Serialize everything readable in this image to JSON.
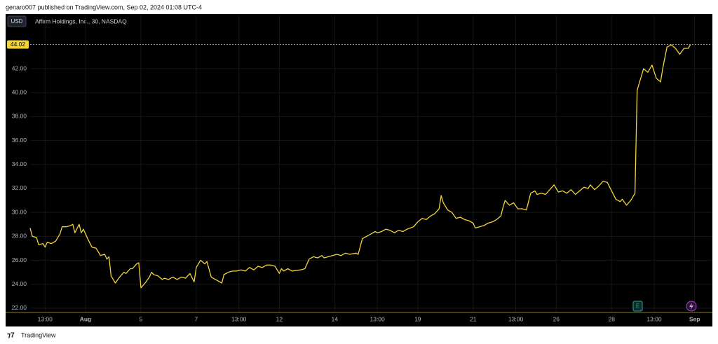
{
  "header": {
    "publisher": "genaro007 published on TradingView.com, Sep 02, 2024 01:08 UTC-4"
  },
  "footer": {
    "brand": "TradingView"
  },
  "chart_data": {
    "type": "line",
    "title": "Affirm Holdings, Inc., 30, NASDAQ",
    "currency": "USD",
    "color": "#f2d33b",
    "grid": true,
    "last_value": 44.02,
    "events": [
      "E"
    ],
    "xlim": [
      0,
      320
    ],
    "ylim": [
      21.7,
      46.45
    ],
    "xticks": [
      {
        "value": 7,
        "label": "13:00"
      },
      {
        "value": 26,
        "label": "Aug"
      },
      {
        "value": 52,
        "label": "5"
      },
      {
        "value": 78,
        "label": "7"
      },
      {
        "value": 98,
        "label": "13:00"
      },
      {
        "value": 117,
        "label": "12"
      },
      {
        "value": 143,
        "label": "14"
      },
      {
        "value": 163,
        "label": "13:00"
      },
      {
        "value": 182,
        "label": "19"
      },
      {
        "value": 208,
        "label": "21"
      },
      {
        "value": 228,
        "label": "13:00"
      },
      {
        "value": 247,
        "label": "26"
      },
      {
        "value": 273,
        "label": "28"
      },
      {
        "value": 293,
        "label": "13:00"
      },
      {
        "value": 312,
        "label": "Sep"
      }
    ],
    "yticks": [
      {
        "value": 22,
        "label": "22.00"
      },
      {
        "value": 24,
        "label": "24.00"
      },
      {
        "value": 26,
        "label": "26.00"
      },
      {
        "value": 28,
        "label": "28.00"
      },
      {
        "value": 30,
        "label": "30.00"
      },
      {
        "value": 32,
        "label": "32.00"
      },
      {
        "value": 34,
        "label": "34.00"
      },
      {
        "value": 36,
        "label": "36.00"
      },
      {
        "value": 38,
        "label": "38.00"
      },
      {
        "value": 40,
        "label": "40.00"
      },
      {
        "value": 42,
        "label": "42.00"
      }
    ],
    "x": [
      0,
      1,
      3,
      4,
      6,
      7,
      8,
      10,
      12,
      14,
      15,
      17,
      19,
      20,
      21,
      23,
      24,
      25,
      27,
      29,
      31,
      33,
      35,
      36,
      37,
      38,
      40,
      42,
      44,
      45,
      47,
      48,
      50,
      51,
      52,
      54,
      56,
      57,
      58,
      60,
      62,
      63,
      65,
      67,
      69,
      71,
      73,
      75,
      77,
      78,
      80,
      82,
      83,
      85,
      87,
      90,
      91,
      93,
      95,
      97,
      99,
      101,
      103,
      105,
      107,
      109,
      111,
      113,
      115,
      117,
      118,
      119,
      121,
      123,
      127,
      129,
      131,
      133,
      135,
      137,
      138,
      140,
      142,
      144,
      146,
      148,
      150,
      153,
      154,
      156,
      158,
      160,
      162,
      163,
      165,
      167,
      169,
      171,
      173,
      175,
      177,
      180,
      182,
      184,
      186,
      188,
      190,
      192,
      193,
      194,
      196,
      198,
      200,
      202,
      204,
      206,
      208,
      209,
      211,
      213,
      215,
      217,
      219,
      221,
      222,
      223,
      225,
      227,
      229,
      231,
      233,
      234,
      235,
      237,
      238,
      240,
      242,
      244,
      246,
      248,
      250,
      252,
      254,
      256,
      258,
      260,
      262,
      263,
      265,
      267,
      269,
      271,
      273,
      275,
      277,
      278,
      280,
      282,
      284,
      285,
      287,
      288,
      290,
      292,
      294,
      296,
      297,
      299,
      301,
      303,
      305,
      307,
      309,
      310
    ],
    "values": [
      28.7,
      28.0,
      27.9,
      27.3,
      27.4,
      27.1,
      27.5,
      27.4,
      27.6,
      28.2,
      28.8,
      28.8,
      28.9,
      29.0,
      28.3,
      29.0,
      28.3,
      28.6,
      27.8,
      27.1,
      27.0,
      26.4,
      26.5,
      26.1,
      26.3,
      24.7,
      24.1,
      24.6,
      25.0,
      24.9,
      25.3,
      25.3,
      25.7,
      25.8,
      23.7,
      24.1,
      24.6,
      25.0,
      24.8,
      24.7,
      24.4,
      24.5,
      24.4,
      24.6,
      24.4,
      24.6,
      24.5,
      24.9,
      24.2,
      25.4,
      26.0,
      25.7,
      25.9,
      24.6,
      24.4,
      24.1,
      24.8,
      25.0,
      25.1,
      25.1,
      25.2,
      25.1,
      25.4,
      25.2,
      25.5,
      25.4,
      25.6,
      25.6,
      25.5,
      24.9,
      25.3,
      25.1,
      25.3,
      25.1,
      25.2,
      25.3,
      26.1,
      26.3,
      26.2,
      26.4,
      26.2,
      26.3,
      26.4,
      26.5,
      26.4,
      26.6,
      26.5,
      26.6,
      26.5,
      27.8,
      28.0,
      28.2,
      28.4,
      28.3,
      28.4,
      28.6,
      28.5,
      28.3,
      28.5,
      28.4,
      28.6,
      28.8,
      29.2,
      29.5,
      29.4,
      29.7,
      29.9,
      30.3,
      31.4,
      30.8,
      30.2,
      30.0,
      29.5,
      29.6,
      29.4,
      29.3,
      29.1,
      28.7,
      28.8,
      28.9,
      29.1,
      29.2,
      29.4,
      29.7,
      30.4,
      31.0,
      30.6,
      30.8,
      30.3,
      30.3,
      30.2,
      30.9,
      31.6,
      31.8,
      31.5,
      31.6,
      31.5,
      31.9,
      32.3,
      31.7,
      31.8,
      31.6,
      31.9,
      31.5,
      31.8,
      32.1,
      32.0,
      32.3,
      31.9,
      32.2,
      32.6,
      32.5,
      31.8,
      31.1,
      30.9,
      31.1,
      30.6,
      31.0,
      31.6,
      40.2,
      41.4,
      42.0,
      41.7,
      42.3,
      41.2,
      40.9,
      42.0,
      43.8,
      44.0,
      43.7,
      43.2,
      43.7,
      43.7,
      44.0
    ]
  }
}
